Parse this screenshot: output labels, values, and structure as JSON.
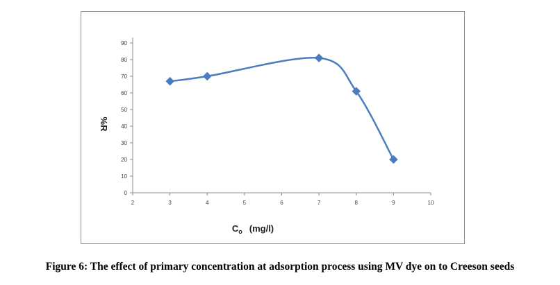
{
  "caption": "Figure 6: The effect of primary concentration at adsorption process using MV dye on to Creeson seeds",
  "chart_data": {
    "type": "line",
    "smooth": true,
    "marker": "diamond",
    "color": "#4a7cc0",
    "x": [
      3,
      4,
      7,
      8,
      9
    ],
    "series": [
      {
        "values": [
          67,
          70,
          81,
          61,
          20
        ]
      }
    ],
    "xlabel_main": "C",
    "xlabel_sub": "o",
    "xlabel_unit": "(mg/l)",
    "ylabel": "%R",
    "xlim": [
      2,
      10
    ],
    "ylim": [
      0,
      90
    ],
    "xticks": [
      2,
      3,
      4,
      5,
      6,
      7,
      8,
      9,
      10
    ],
    "yticks": [
      0,
      10,
      20,
      30,
      40,
      50,
      60,
      70,
      80,
      90
    ],
    "grid": false,
    "legend": false
  }
}
